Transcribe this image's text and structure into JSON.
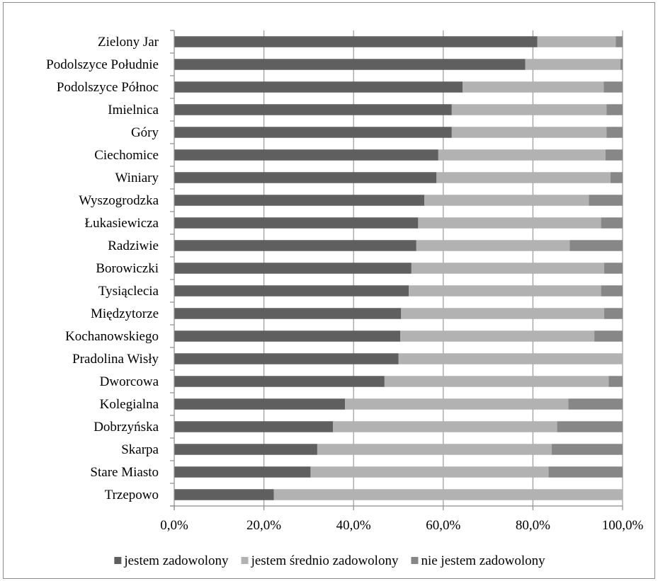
{
  "chart_data": {
    "type": "bar",
    "orientation": "horizontal",
    "stacked": "percent",
    "categories": [
      "Zielony Jar",
      "Podolszyce Południe",
      "Podolszyce Północ",
      "Imielnica",
      "Góry",
      "Ciechomice",
      "Winiary",
      "Wyszogrodzka",
      "Łukasiewicza",
      "Radziwie",
      "Borowiczki",
      "Tysiąclecia",
      "Międzytorze",
      "Kochanowskiego",
      "Pradolina Wisły",
      "Dworcowa",
      "Kolegialna",
      "Dobrzyńska",
      "Skarpa",
      "Stare Miasto",
      "Trzepowo"
    ],
    "series": [
      {
        "name": "jestem zadowolony",
        "color": "#5f5f5f",
        "values": [
          81.0,
          78.3,
          64.3,
          61.9,
          61.9,
          58.9,
          58.5,
          55.8,
          54.4,
          54.0,
          52.9,
          52.3,
          50.6,
          50.4,
          50.0,
          46.9,
          38.1,
          35.4,
          31.9,
          30.4,
          22.2
        ]
      },
      {
        "name": "jestem średnio zadowolony",
        "color": "#b2b2b2",
        "values": [
          17.5,
          21.2,
          31.5,
          34.5,
          34.5,
          37.3,
          38.8,
          36.7,
          40.8,
          34.2,
          43.0,
          42.9,
          45.3,
          43.3,
          50.0,
          50.0,
          49.8,
          50.0,
          52.3,
          53.1,
          77.8
        ]
      },
      {
        "name": "nie jestem zadowolony",
        "color": "#878787",
        "values": [
          1.5,
          0.5,
          4.2,
          3.6,
          3.6,
          3.8,
          2.7,
          7.5,
          4.8,
          11.8,
          4.1,
          4.8,
          4.1,
          6.3,
          0.0,
          3.1,
          12.1,
          14.6,
          15.8,
          16.5,
          0.0
        ]
      }
    ],
    "x_ticks": [
      "0,0%",
      "20,0%",
      "40,0%",
      "60,0%",
      "80,0%",
      "100,0%"
    ],
    "xlim": [
      0,
      100
    ],
    "grid": "vertical",
    "legend_position": "bottom"
  }
}
